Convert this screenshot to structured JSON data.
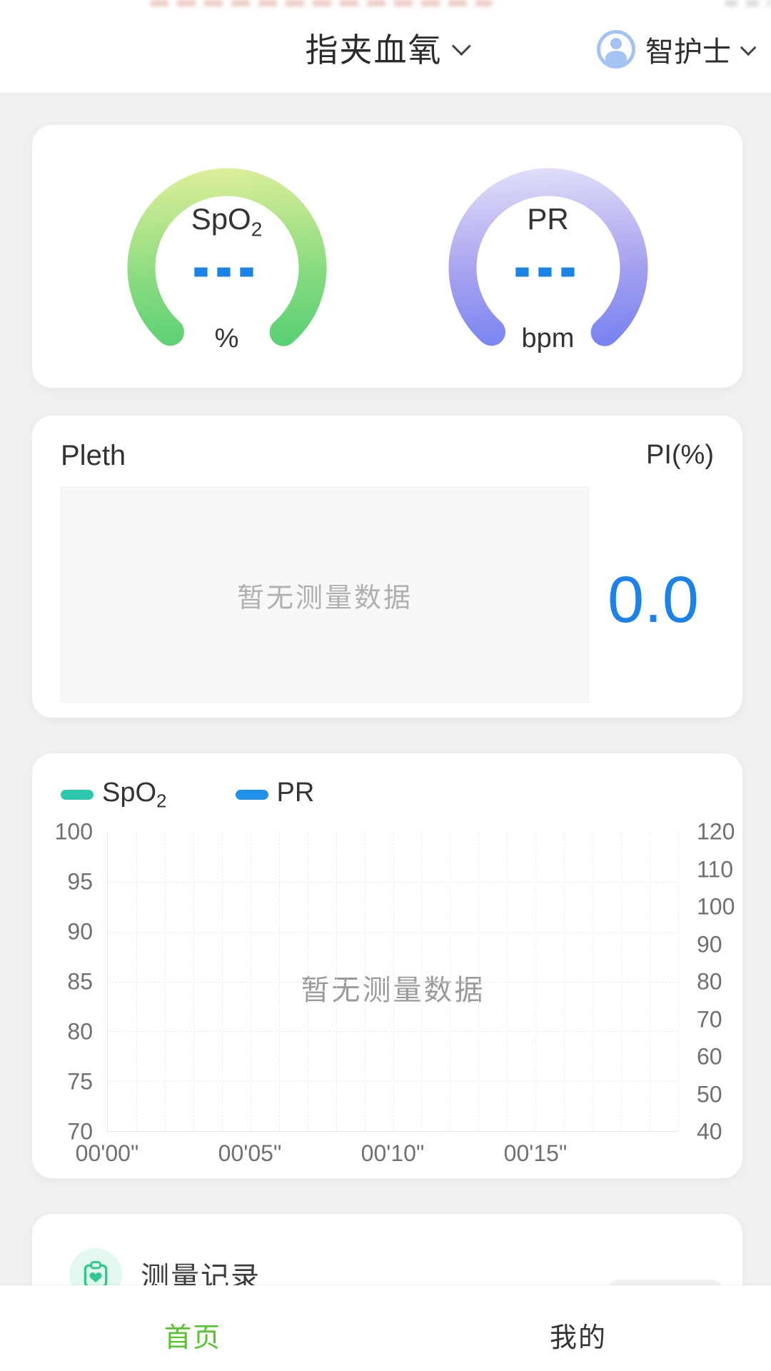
{
  "header": {
    "title": "指夹血氧",
    "user": {
      "name": "智护士"
    }
  },
  "gauges": [
    {
      "label_main": "SpO",
      "label_sub": "2",
      "value": "---",
      "unit": "%",
      "gradient": [
        "#eef29f",
        "#8edc80",
        "#3ec96f"
      ]
    },
    {
      "label_main": "PR",
      "label_sub": "",
      "value": "---",
      "unit": "bpm",
      "gradient": [
        "#ecebfb",
        "#a7a2ef",
        "#5e73f3"
      ]
    }
  ],
  "pleth": {
    "title": "Pleth",
    "pi_label": "PI(%)",
    "empty_text": "暂无测量数据",
    "pi_value": "0.0",
    "pi_value_color": "#1b82e8"
  },
  "chart_data": {
    "type": "line",
    "title": "",
    "empty_text": "暂无测量数据",
    "legend": [
      {
        "label_main": "SpO",
        "label_sub": "2",
        "color": "#2bc8ad"
      },
      {
        "label_main": "PR",
        "label_sub": "",
        "color": "#2090e8"
      }
    ],
    "series": [
      {
        "name": "SpO2",
        "values": []
      },
      {
        "name": "PR",
        "values": []
      }
    ],
    "left_axis": {
      "ticks": [
        "100",
        "95",
        "90",
        "85",
        "80",
        "75",
        "70"
      ],
      "range": [
        70,
        100
      ]
    },
    "right_axis": {
      "ticks": [
        "120",
        "110",
        "100",
        "90",
        "80",
        "70",
        "60",
        "50",
        "40"
      ],
      "range": [
        40,
        120
      ]
    },
    "x_ticks": [
      "00'00\"",
      "00'05\"",
      "00'10\"",
      "00'15\""
    ],
    "x_tick_spacing_pct": 25,
    "grid": true,
    "legend_position": "top-left"
  },
  "records": {
    "title": "测量记录"
  },
  "tabbar": {
    "active_color": "#55c32a",
    "items": [
      {
        "label": "首页",
        "active": true
      },
      {
        "label": "我的",
        "active": false
      }
    ]
  }
}
